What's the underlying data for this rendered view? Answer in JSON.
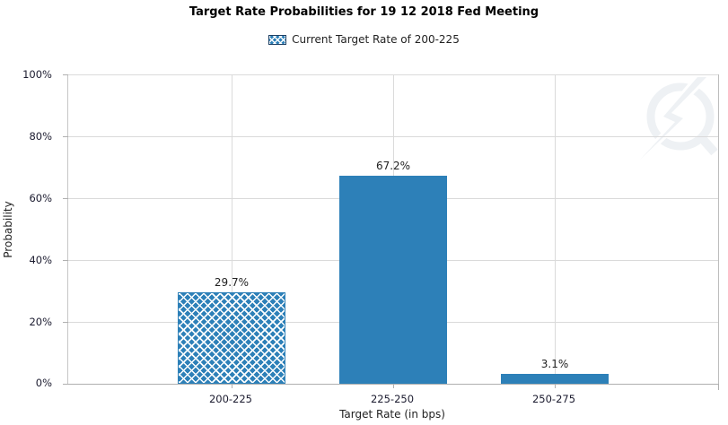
{
  "title": "Target Rate Probabilities for 19 12 2018 Fed Meeting",
  "legend": {
    "label": "Current Target Rate of 200-225",
    "swatch_style": "blue-crosshatch"
  },
  "y_axis": {
    "title": "Probability",
    "ticks": [
      "100%",
      "80%",
      "60%",
      "40%",
      "20%",
      "0%"
    ]
  },
  "x_axis": {
    "title": "Target Rate (in bps)"
  },
  "watermark_icon": "lightning-bolt-circle-logo",
  "colors": {
    "bar": "#2d80b8",
    "hatch_line": "#ffffff",
    "gridline": "#dadada",
    "axis": "#b0b0b0",
    "title_text": "#000000",
    "tick_text": "#1b1b2f",
    "watermark": "#eef1f4"
  },
  "chart_data": {
    "type": "bar",
    "title": "Target Rate Probabilities for 19 12 2018 Fed Meeting",
    "series_name": "Current Target Rate of 200-225",
    "categories": [
      "200-225",
      "225-250",
      "250-275"
    ],
    "values": [
      29.7,
      67.2,
      3.1
    ],
    "data_labels": [
      "29.7%",
      "67.2%",
      "3.1%"
    ],
    "bar_styles": [
      "hatched",
      "solid",
      "solid"
    ],
    "xlabel": "Target Rate (in bps)",
    "ylabel": "Probability",
    "ylim": [
      0,
      100
    ],
    "y_tick_step": 20,
    "grid": true,
    "legend_position": "top-center"
  }
}
